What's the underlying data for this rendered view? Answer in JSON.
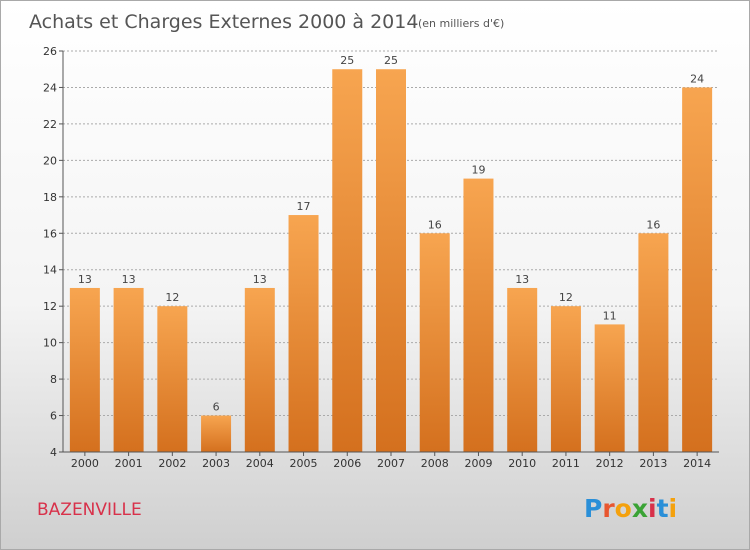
{
  "header": {
    "title": "Achats et Charges Externes 2000 à 2014",
    "subtitle": "(en milliers d'€)"
  },
  "place": "BAZENVILLE",
  "logo": {
    "letters": [
      "P",
      "r",
      "o",
      "x",
      "i",
      "t",
      "i"
    ],
    "colors": [
      "#2a8fd8",
      "#e8562f",
      "#f4a10d",
      "#3aa335",
      "#d8314a",
      "#2a8fd8",
      "#f4a10d"
    ]
  },
  "colors": {
    "bar_light": "#f7a550",
    "bar_dark": "#d4701e",
    "grid": "#aaaaaa",
    "place": "#d8314a"
  },
  "chart_data": {
    "type": "bar",
    "title": "Achats et Charges Externes 2000 à 2014",
    "subtitle": "(en milliers d'€)",
    "xlabel": "",
    "ylabel": "",
    "categories": [
      "2000",
      "2001",
      "2002",
      "2003",
      "2004",
      "2005",
      "2006",
      "2007",
      "2008",
      "2009",
      "2010",
      "2011",
      "2012",
      "2013",
      "2014"
    ],
    "values": [
      13,
      13,
      12,
      6,
      13,
      17,
      25,
      25,
      16,
      19,
      13,
      12,
      11,
      16,
      24
    ],
    "ylim": [
      4,
      26
    ],
    "yticks": [
      4,
      6,
      8,
      10,
      12,
      14,
      16,
      18,
      20,
      22,
      24,
      26
    ],
    "grid": true,
    "data_labels": true
  }
}
